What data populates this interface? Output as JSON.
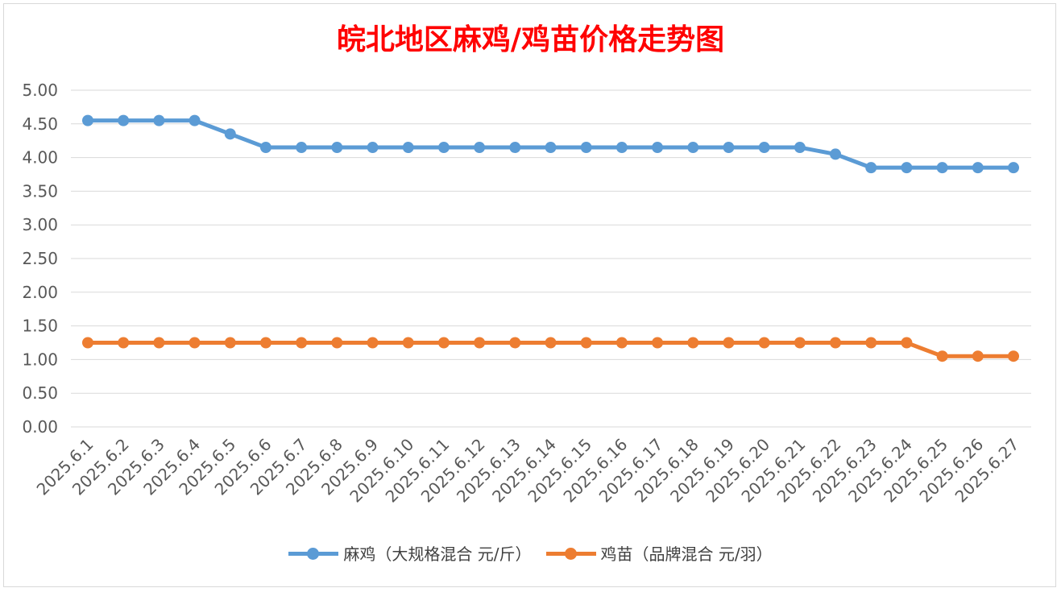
{
  "chart_data": {
    "type": "line",
    "title": "皖北地区麻鸡/鸡苗价格走势图",
    "categories": [
      "2025.6.1",
      "2025.6.2",
      "2025.6.3",
      "2025.6.4",
      "2025.6.5",
      "2025.6.6",
      "2025.6.7",
      "2025.6.8",
      "2025.6.9",
      "2025.6.10",
      "2025.6.11",
      "2025.6.12",
      "2025.6.13",
      "2025.6.14",
      "2025.6.15",
      "2025.6.16",
      "2025.6.17",
      "2025.6.18",
      "2025.6.19",
      "2025.6.20",
      "2025.6.21",
      "2025.6.22",
      "2025.6.23",
      "2025.6.24",
      "2025.6.25",
      "2025.6.26",
      "2025.6.27"
    ],
    "series": [
      {
        "name": "麻鸡（大规格混合 元/斤）",
        "color": "#5b9bd5",
        "values": [
          4.55,
          4.55,
          4.55,
          4.55,
          4.35,
          4.15,
          4.15,
          4.15,
          4.15,
          4.15,
          4.15,
          4.15,
          4.15,
          4.15,
          4.15,
          4.15,
          4.15,
          4.15,
          4.15,
          4.15,
          4.15,
          4.05,
          3.85,
          3.85,
          3.85,
          3.85,
          3.85
        ]
      },
      {
        "name": "鸡苗（品牌混合 元/羽）",
        "color": "#ed7d31",
        "values": [
          1.25,
          1.25,
          1.25,
          1.25,
          1.25,
          1.25,
          1.25,
          1.25,
          1.25,
          1.25,
          1.25,
          1.25,
          1.25,
          1.25,
          1.25,
          1.25,
          1.25,
          1.25,
          1.25,
          1.25,
          1.25,
          1.25,
          1.25,
          1.25,
          1.05,
          1.05,
          1.05
        ]
      }
    ],
    "ylim": [
      0,
      5
    ],
    "yticks": [
      "0.00",
      "0.50",
      "1.00",
      "1.50",
      "2.00",
      "2.50",
      "3.00",
      "3.50",
      "4.00",
      "4.50",
      "5.00"
    ],
    "grid": true,
    "legend": "bottom"
  }
}
